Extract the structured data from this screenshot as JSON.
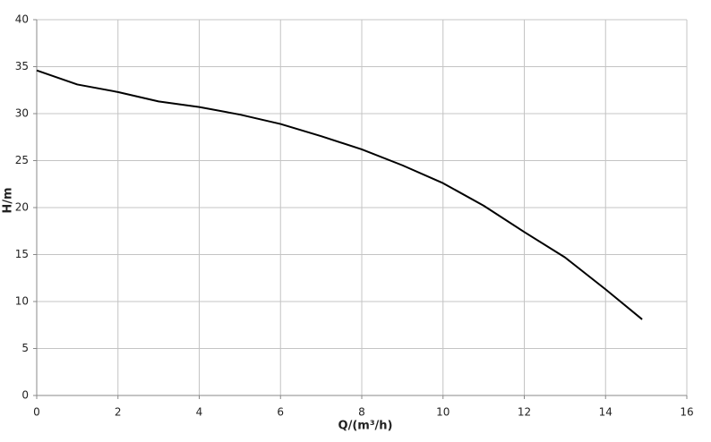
{
  "chart_data": {
    "type": "line",
    "x": [
      0,
      1,
      2,
      3,
      4,
      5,
      6,
      7,
      8,
      9,
      10,
      11,
      12,
      13,
      14,
      14.9
    ],
    "series": [
      {
        "name": "H",
        "color": "#000000",
        "values": [
          34.6,
          33.1,
          32.3,
          31.3,
          30.7,
          29.9,
          28.9,
          27.6,
          26.2,
          24.5,
          22.6,
          20.2,
          17.4,
          14.7,
          11.3,
          8.1
        ]
      }
    ],
    "xlim": [
      0,
      16
    ],
    "xticks": [
      0,
      2,
      4,
      6,
      8,
      10,
      12,
      14,
      16
    ],
    "ylim": [
      0,
      40
    ],
    "yticks": [
      0,
      5,
      10,
      15,
      20,
      25,
      30,
      35,
      40
    ],
    "xlabel": "Q/(m³/h)",
    "ylabel": "H/m",
    "grid": true
  }
}
